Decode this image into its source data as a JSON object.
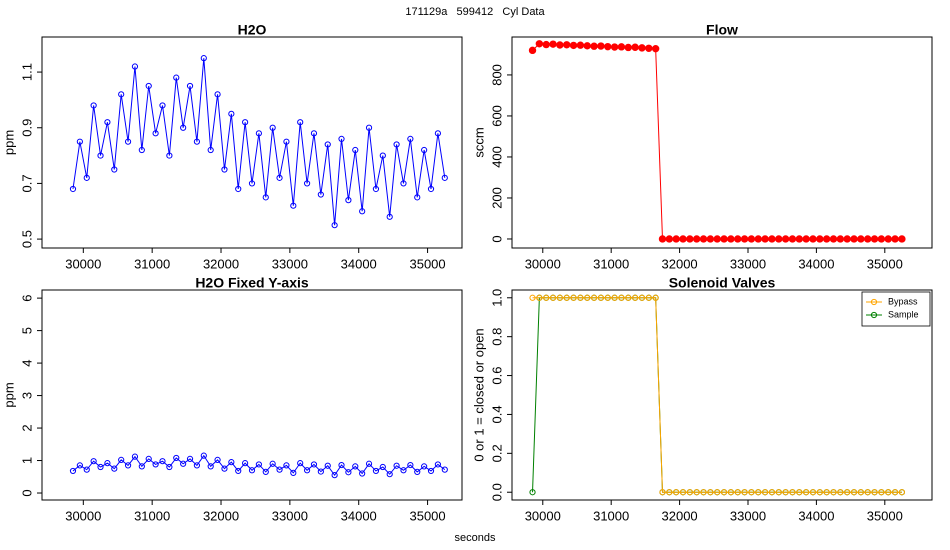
{
  "title": "171129a   599412   Cyl Data",
  "xlabel": "seconds",
  "chart_data": [
    {
      "type": "line",
      "title": "H2O",
      "ylabel": "ppm",
      "marker": "open",
      "x": [
        29850,
        29950,
        30050,
        30150,
        30250,
        30350,
        30450,
        30550,
        30650,
        30750,
        30850,
        30950,
        31050,
        31150,
        31250,
        31350,
        31450,
        31550,
        31650,
        31750,
        31850,
        31950,
        32050,
        32150,
        32250,
        32350,
        32450,
        32550,
        32650,
        32750,
        32850,
        32950,
        33050,
        33150,
        33250,
        33350,
        33450,
        33550,
        33650,
        33750,
        33850,
        33950,
        34050,
        34150,
        34250,
        34350,
        34450,
        34550,
        34650,
        34750,
        34850,
        34950,
        35050,
        35150,
        35250
      ],
      "series": [
        {
          "color": "#0000ff",
          "values": [
            0.68,
            0.85,
            0.72,
            0.98,
            0.8,
            0.92,
            0.75,
            1.02,
            0.85,
            1.12,
            0.82,
            1.05,
            0.88,
            0.98,
            0.8,
            1.08,
            0.9,
            1.05,
            0.85,
            1.15,
            0.82,
            1.02,
            0.75,
            0.95,
            0.68,
            0.92,
            0.7,
            0.88,
            0.65,
            0.9,
            0.72,
            0.85,
            0.62,
            0.92,
            0.7,
            0.88,
            0.66,
            0.84,
            0.55,
            0.86,
            0.64,
            0.82,
            0.6,
            0.9,
            0.68,
            0.8,
            0.58,
            0.84,
            0.7,
            0.86,
            0.65,
            0.82,
            0.68,
            0.88,
            0.72
          ]
        }
      ],
      "xlim": [
        29400,
        35500
      ],
      "xticks": [
        30000,
        31000,
        32000,
        33000,
        34000,
        35000
      ],
      "ylim": [
        0.468,
        1.226
      ],
      "yticks": [
        0.5,
        0.7,
        0.9,
        1.1
      ]
    },
    {
      "type": "line",
      "title": "Flow",
      "ylabel": "sccm",
      "marker": "filled",
      "x": [
        29850,
        29950,
        30050,
        30150,
        30250,
        30350,
        30450,
        30550,
        30650,
        30750,
        30850,
        30950,
        31050,
        31150,
        31250,
        31350,
        31450,
        31550,
        31650,
        31750,
        31850,
        31950,
        32050,
        32150,
        32250,
        32350,
        32450,
        32550,
        32650,
        32750,
        32850,
        32950,
        33050,
        33150,
        33250,
        33350,
        33450,
        33550,
        33650,
        33750,
        33850,
        33950,
        34050,
        34150,
        34250,
        34350,
        34450,
        34550,
        34650,
        34750,
        34850,
        34950,
        35050,
        35150,
        35250
      ],
      "series": [
        {
          "color": "#ff0000",
          "values": [
            920,
            952,
            948,
            950,
            946,
            947,
            944,
            945,
            942,
            940,
            941,
            938,
            936,
            937,
            934,
            935,
            932,
            930,
            928,
            0,
            0,
            0,
            0,
            0,
            0,
            0,
            0,
            0,
            0,
            0,
            0,
            0,
            0,
            0,
            0,
            0,
            0,
            0,
            0,
            0,
            0,
            0,
            0,
            0,
            0,
            0,
            0,
            0,
            0,
            0,
            0,
            0,
            0,
            0,
            0
          ]
        }
      ],
      "xlim": [
        29550,
        35690
      ],
      "xticks": [
        30000,
        31000,
        32000,
        33000,
        34000,
        35000
      ],
      "ylim": [
        -44,
        985
      ],
      "yticks": [
        0,
        200,
        400,
        600,
        800
      ]
    },
    {
      "type": "line",
      "title": "H2O Fixed Y-axis",
      "ylabel": "ppm",
      "marker": "open",
      "x": [
        29850,
        29950,
        30050,
        30150,
        30250,
        30350,
        30450,
        30550,
        30650,
        30750,
        30850,
        30950,
        31050,
        31150,
        31250,
        31350,
        31450,
        31550,
        31650,
        31750,
        31850,
        31950,
        32050,
        32150,
        32250,
        32350,
        32450,
        32550,
        32650,
        32750,
        32850,
        32950,
        33050,
        33150,
        33250,
        33350,
        33450,
        33550,
        33650,
        33750,
        33850,
        33950,
        34050,
        34150,
        34250,
        34350,
        34450,
        34550,
        34650,
        34750,
        34850,
        34950,
        35050,
        35150,
        35250
      ],
      "series": [
        {
          "color": "#0000ff",
          "values": [
            0.68,
            0.85,
            0.72,
            0.98,
            0.8,
            0.92,
            0.75,
            1.02,
            0.85,
            1.12,
            0.82,
            1.05,
            0.88,
            0.98,
            0.8,
            1.08,
            0.9,
            1.05,
            0.85,
            1.15,
            0.82,
            1.02,
            0.75,
            0.95,
            0.68,
            0.92,
            0.7,
            0.88,
            0.65,
            0.9,
            0.72,
            0.85,
            0.62,
            0.92,
            0.7,
            0.88,
            0.66,
            0.84,
            0.55,
            0.86,
            0.64,
            0.82,
            0.6,
            0.9,
            0.68,
            0.8,
            0.58,
            0.84,
            0.7,
            0.86,
            0.65,
            0.82,
            0.68,
            0.88,
            0.72
          ]
        }
      ],
      "xlim": [
        29400,
        35500
      ],
      "xticks": [
        30000,
        31000,
        32000,
        33000,
        34000,
        35000
      ],
      "ylim": [
        -0.215,
        6.25
      ],
      "yticks": [
        0,
        1,
        2,
        3,
        4,
        5,
        6
      ]
    },
    {
      "type": "line",
      "title": "Solenoid Valves",
      "ylabel": "0 or 1 = closed or open",
      "marker": "open",
      "legend": "topright",
      "x": [
        29850,
        29950,
        30050,
        30150,
        30250,
        30350,
        30450,
        30550,
        30650,
        30750,
        30850,
        30950,
        31050,
        31150,
        31250,
        31350,
        31450,
        31550,
        31650,
        31750,
        31850,
        31950,
        32050,
        32150,
        32250,
        32350,
        32450,
        32550,
        32650,
        32750,
        32850,
        32950,
        33050,
        33150,
        33250,
        33350,
        33450,
        33550,
        33650,
        33750,
        33850,
        33950,
        34050,
        34150,
        34250,
        34350,
        34450,
        34550,
        34650,
        34750,
        34850,
        34950,
        35050,
        35150,
        35250
      ],
      "series": [
        {
          "name": "Bypass",
          "color": "#ffa500",
          "values": [
            1,
            1,
            1,
            1,
            1,
            1,
            1,
            1,
            1,
            1,
            1,
            1,
            1,
            1,
            1,
            1,
            1,
            1,
            1,
            0,
            0,
            0,
            0,
            0,
            0,
            0,
            0,
            0,
            0,
            0,
            0,
            0,
            0,
            0,
            0,
            0,
            0,
            0,
            0,
            0,
            0,
            0,
            0,
            0,
            0,
            0,
            0,
            0,
            0,
            0,
            0,
            0,
            0,
            0,
            0
          ]
        },
        {
          "name": "Sample",
          "color": "#008000",
          "values": [
            0,
            1,
            1,
            1,
            1,
            1,
            1,
            1,
            1,
            1,
            1,
            1,
            1,
            1,
            1,
            1,
            1,
            1,
            1,
            0,
            0,
            0,
            0,
            0,
            0,
            0,
            0,
            0,
            0,
            0,
            0,
            0,
            0,
            0,
            0,
            0,
            0,
            0,
            0,
            0,
            0,
            0,
            0,
            0,
            0,
            0,
            0,
            0,
            0,
            0,
            0,
            0,
            0,
            0,
            0
          ]
        }
      ],
      "xlim": [
        29550,
        35690
      ],
      "xticks": [
        30000,
        31000,
        32000,
        33000,
        34000,
        35000
      ],
      "ylim": [
        -0.04,
        1.04
      ],
      "yticks": [
        {
          "value": 0,
          "label": "0.0"
        },
        0.2,
        0.4,
        0.6,
        0.8,
        {
          "value": 1,
          "label": "1.0"
        }
      ]
    }
  ]
}
